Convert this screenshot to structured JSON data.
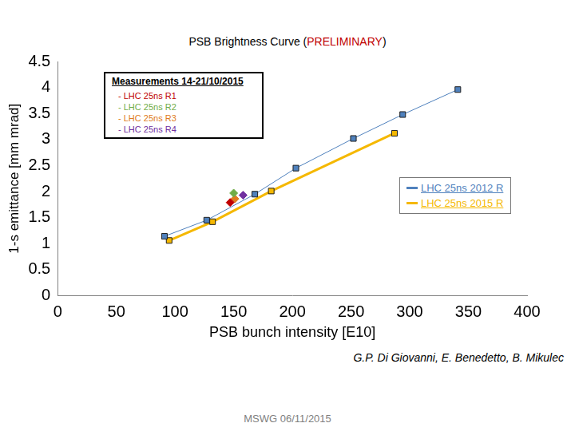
{
  "chart_data": {
    "type": "scatter",
    "title": "PSB Brightness Curve (PRELIMINARY)",
    "title_highlight": "PRELIMINARY",
    "x_label": "PSB bunch intensity [E10]",
    "y_label": "1-s emittance [mm mrad]",
    "legend_title": "Measurements 14-21/10/2015",
    "caption": "G.P. Di Giovanni, E. Benedetto, B. Mikulec",
    "footer": "MSWG 06/11/2015",
    "xlim": [
      0,
      400
    ],
    "xticks": [
      0,
      50,
      100,
      150,
      200,
      250,
      300,
      350,
      400
    ],
    "ylim": [
      0,
      4.5
    ],
    "yticks": [
      0,
      0.5,
      1,
      1.5,
      2,
      2.5,
      3,
      3.5,
      4,
      4.5
    ],
    "grid": false,
    "legend": "upper left",
    "series": [
      {
        "name": "- LHC 25ns R1",
        "color": "#c00000",
        "marker": "diamond",
        "x": [
          147
        ],
        "values": [
          1.79
        ]
      },
      {
        "name": "- LHC 25ns R2",
        "color": "#70ad47",
        "marker": "diamond",
        "x": [
          150
        ],
        "values": [
          1.97
        ]
      },
      {
        "name": "- LHC 25ns R3",
        "color": "#e07b20",
        "marker": "diamond",
        "x": [
          151
        ],
        "values": [
          1.86
        ]
      },
      {
        "name": "- LHC 25ns R4",
        "color": "#7030a0",
        "marker": "diamond",
        "x": [
          158
        ],
        "values": [
          1.93
        ]
      },
      {
        "name": "LHC 25ns 2012 R",
        "color": "#4f81bd",
        "marker": "square",
        "line_style": "solid",
        "x": [
          91,
          127,
          168,
          203,
          252,
          294,
          341
        ],
        "values": [
          1.14,
          1.45,
          1.95,
          2.45,
          3.02,
          3.48,
          3.96
        ]
      },
      {
        "name": "LHC 25ns 2015 R",
        "color": "#f5b800",
        "marker": "square",
        "line_style": "solid",
        "x": [
          95,
          132,
          182,
          287
        ],
        "values": [
          1.06,
          1.42,
          2.01,
          3.12
        ]
      }
    ]
  }
}
